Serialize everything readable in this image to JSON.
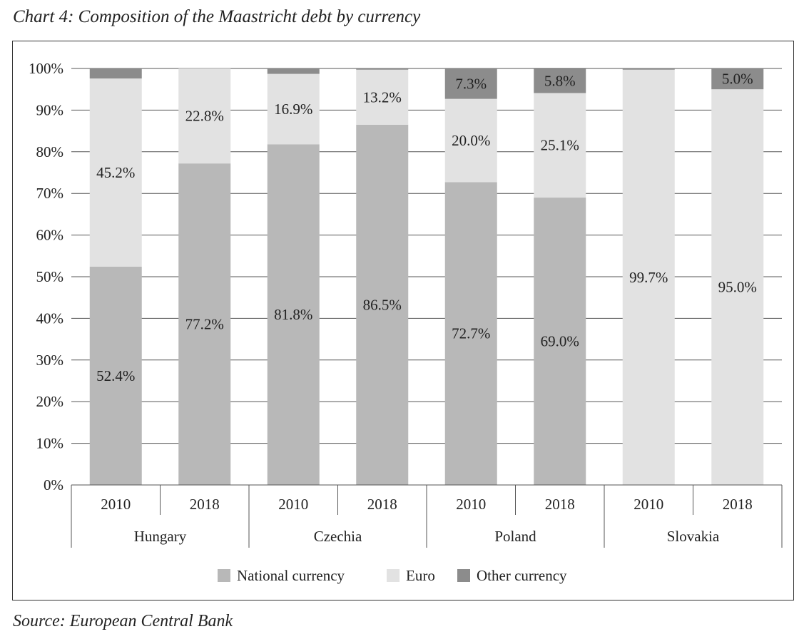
{
  "title": "Chart 4: Composition of the Maastricht debt by currency",
  "source": "Source: European Central Bank",
  "colors": {
    "national": "#b8b8b8",
    "euro": "#e2e2e2",
    "other": "#8c8c8c",
    "grid": "#555555"
  },
  "chart_data": {
    "type": "bar",
    "stacked": true,
    "y_axis": {
      "min": 0,
      "max": 100,
      "ticks": [
        "0%",
        "10%",
        "20%",
        "30%",
        "40%",
        "50%",
        "60%",
        "70%",
        "80%",
        "90%",
        "100%"
      ]
    },
    "grid": true,
    "legend_position": "bottom",
    "groups": [
      "Hungary",
      "Czechia",
      "Poland",
      "Slovakia"
    ],
    "categories": [
      "2010",
      "2018",
      "2010",
      "2018",
      "2010",
      "2018",
      "2010",
      "2018"
    ],
    "series": [
      {
        "name": "National currency",
        "values": [
          52.4,
          77.2,
          81.8,
          86.5,
          72.7,
          69.0,
          0.0,
          0.0
        ],
        "labels": [
          "52.4%",
          "77.2%",
          "81.8%",
          "86.5%",
          "72.7%",
          "69.0%",
          "",
          ""
        ]
      },
      {
        "name": "Euro",
        "values": [
          45.2,
          22.8,
          16.9,
          13.2,
          20.0,
          25.1,
          99.7,
          95.0
        ],
        "labels": [
          "45.2%",
          "22.8%",
          "16.9%",
          "13.2%",
          "20.0%",
          "25.1%",
          "99.7%",
          "95.0%"
        ]
      },
      {
        "name": "Other currency",
        "values": [
          2.4,
          0.0,
          1.3,
          0.3,
          7.3,
          5.8,
          0.3,
          5.0
        ],
        "labels": [
          "",
          "",
          "",
          "",
          "7.3%",
          "5.8%",
          "",
          "5.0%"
        ]
      }
    ]
  }
}
